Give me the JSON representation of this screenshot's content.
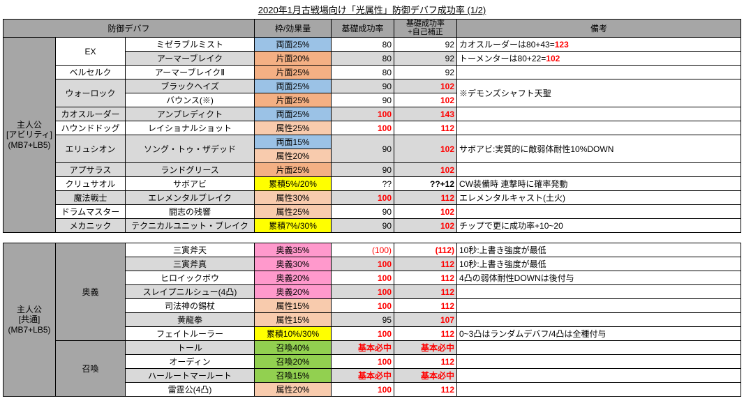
{
  "title": "2020年1月古戦場向け「光属性」防御デバフ成功率 (1/2)",
  "headers": {
    "debuff": "防御デバフ",
    "slot": "枠/効果量",
    "base": "基礎成功率",
    "self": "基礎成功率\n+自己補正",
    "note": "備考"
  },
  "t1": {
    "grpLabel": "主人公\n[アビリティ]\n(MB7+LB5)",
    "exLabel": "EX",
    "rows": [
      {
        "alt": 0,
        "g2": "",
        "abil": "ミゼラブルミスト",
        "slot": "両面25%",
        "sc": "blue",
        "base": "80",
        "self": "92",
        "sr": 0,
        "note": "カオスルーダーは80+43=",
        "nh": "123"
      },
      {
        "alt": 1,
        "g2": "",
        "abil": "アーマーブレイク",
        "slot": "片面20%",
        "sc": "red",
        "base": "80",
        "self": "92",
        "sr": 0,
        "note": "トーメンターは80+22=",
        "nh": "102"
      },
      {
        "alt": 0,
        "g2": "ベルセルク",
        "abil": "アーマーブレイクⅡ",
        "slot": "片面25%",
        "sc": "red",
        "base": "80",
        "self": "92",
        "sr": 0,
        "note": ""
      },
      {
        "alt": 1,
        "g2": "",
        "abil": "ブラックヘイズ",
        "slot": "両面25%",
        "sc": "blue",
        "base": "90",
        "self": "102",
        "sr": 1,
        "note": ""
      },
      {
        "alt": 0,
        "g2": "ウォーロック",
        "abil": "バウンス(※)",
        "slot": "片面25%",
        "sc": "red",
        "base": "90",
        "self": "102",
        "sr": 1,
        "note": "※デモンズシャフト天聖",
        "nmerge": 1
      },
      {
        "alt": 1,
        "g2": "カオスルーダー",
        "abil": "アンプレディクト",
        "slot": "両面25%",
        "sc": "blue",
        "base": "100",
        "br": 1,
        "self": "143",
        "sr": 1,
        "note": ""
      },
      {
        "alt": 0,
        "g2": "ハウンドドッグ",
        "abil": "レイショナルショット",
        "slot": "属性25%",
        "sc": "salmon",
        "base": "100",
        "br": 1,
        "self": "112",
        "sr": 1,
        "note": ""
      },
      {
        "alt": 1,
        "g2": "",
        "abil": "",
        "slot": "両面15%",
        "sc": "blue",
        "base": "",
        "self": "",
        "sr": 1,
        "note": ""
      },
      {
        "alt": 0,
        "g2": "エリュシオン",
        "abil": "ソング・トゥ・ザデッド",
        "slot": "属性20%",
        "sc": "salmon",
        "base": "90",
        "self": "102",
        "sr": 1,
        "note": "サボアビ:実質的に敵弱体耐性10%DOWN",
        "erows": 2
      },
      {
        "alt": 1,
        "g2": "アプサラス",
        "abil": "ランドグリース",
        "slot": "片面25%",
        "sc": "red",
        "base": "90",
        "self": "102",
        "sr": 1,
        "note": ""
      },
      {
        "alt": 0,
        "g2": "クリュサオル",
        "abil": "サボアビ",
        "slot": "累積5%/20%",
        "sc": "yellow",
        "base": "??",
        "self": "??+12",
        "sr": 0,
        "selfbold": 1,
        "note": "CW装備時 連撃時に確率発動"
      },
      {
        "alt": 1,
        "g2": "魔法戦士",
        "abil": "エレメンタルブレイク",
        "slot": "属性30%",
        "sc": "salmon",
        "base": "100",
        "br": 1,
        "self": "112",
        "sr": 1,
        "note": "エレメンタルキャスト(土火)"
      },
      {
        "alt": 0,
        "g2": "ドラムマスター",
        "abil": "闘志の残響",
        "slot": "属性25%",
        "sc": "salmon",
        "base": "90",
        "self": "102",
        "sr": 1,
        "note": ""
      },
      {
        "alt": 1,
        "g2": "メカニック",
        "abil": "テクニカルユニット・ブレイク",
        "slot": "累積7%/30%",
        "sc": "yellow",
        "base": "90",
        "self": "102",
        "sr": 1,
        "note": "チップで更に成功率+10~20"
      }
    ]
  },
  "t2": {
    "grpLabel": "主人公\n[共通]\n(MB7+LB5)",
    "ougiLabel": "奥義",
    "summonLabel": "召喚",
    "rows": [
      {
        "alt": 0,
        "abil": "三寅斧天",
        "slot": "奥義35%",
        "sc": "pink",
        "base": "(100)",
        "bp": 1,
        "self": "(112)",
        "sp": 1,
        "note": "10秒:上書き強度が最低"
      },
      {
        "alt": 1,
        "abil": "三寅斧真",
        "slot": "奥義30%",
        "sc": "pink",
        "base": "100",
        "br": 1,
        "self": "112",
        "sr": 1,
        "note": "10秒:上書き強度が最低"
      },
      {
        "alt": 0,
        "abil": "ヒロイックボウ",
        "slot": "奥義20%",
        "sc": "pink",
        "base": "100",
        "br": 1,
        "self": "112",
        "sr": 1,
        "note": "4凸の弱体耐性DOWNは後付与"
      },
      {
        "alt": 1,
        "abil": "スレイプニルシュー(4凸)",
        "slot": "奥義20%",
        "sc": "pink",
        "base": "100",
        "br": 1,
        "self": "112",
        "sr": 1,
        "note": ""
      },
      {
        "alt": 0,
        "abil": "司法神の錫杖",
        "slot": "属性15%",
        "sc": "salmon",
        "base": "100",
        "br": 1,
        "self": "112",
        "sr": 1,
        "note": ""
      },
      {
        "alt": 1,
        "abil": "黄龍拳",
        "slot": "属性15%",
        "sc": "salmon",
        "base": "95",
        "self": "107",
        "sr": 1,
        "note": ""
      },
      {
        "alt": 0,
        "abil": "フェイトルーラー",
        "slot": "累積10%/30%",
        "sc": "yellow",
        "base": "100",
        "br": 1,
        "self": "112",
        "sr": 1,
        "note": "0~3凸はランダムデバフ/4凸は全種付与"
      },
      {
        "alt": 1,
        "abil": "トール",
        "slot": "召喚40%",
        "sc": "green",
        "base": "基本必中",
        "br": 1,
        "self": "基本必中",
        "sr": 1,
        "note": ""
      },
      {
        "alt": 0,
        "abil": "オーディン",
        "slot": "召喚20%",
        "sc": "green",
        "base": "100",
        "br": 1,
        "self": "112",
        "sr": 1,
        "note": ""
      },
      {
        "alt": 1,
        "abil": "ハールートマールート",
        "slot": "召喚15%",
        "sc": "green",
        "base": "基本必中",
        "br": 1,
        "self": "基本必中",
        "sr": 1,
        "note": ""
      },
      {
        "alt": 0,
        "abil": "雷霆公(4凸)",
        "slot": "属性20%",
        "sc": "salmon",
        "base": "100",
        "br": 1,
        "self": "112",
        "sr": 1,
        "note": ""
      }
    ]
  }
}
